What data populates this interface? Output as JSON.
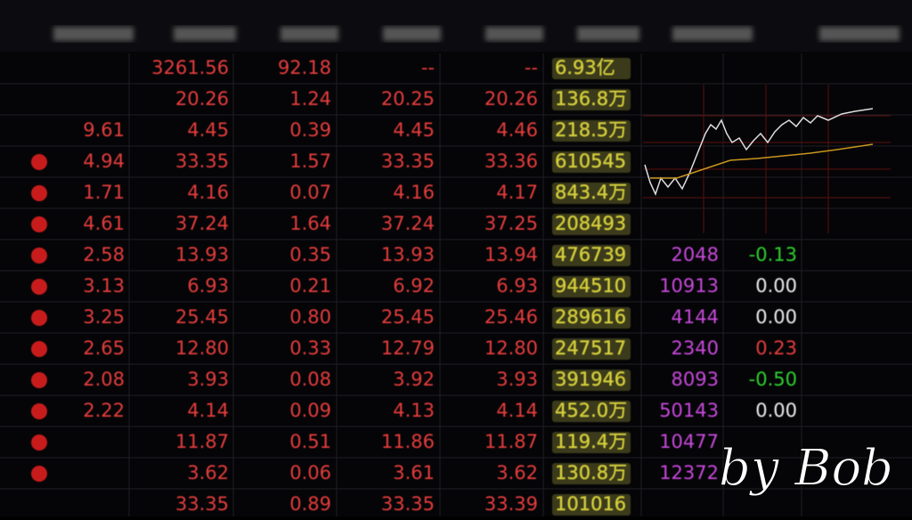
{
  "table": {
    "rows": [
      [
        null,
        "3261.56",
        "92.18",
        "--",
        "--",
        "6.93亿",
        null,
        null
      ],
      [
        null,
        "20.26",
        "1.24",
        "20.25",
        "20.26",
        "136.8万",
        null,
        null
      ],
      [
        "9.61",
        "4.45",
        "0.39",
        "4.45",
        "4.46",
        "218.5万",
        null,
        null
      ],
      [
        "4.94",
        "33.35",
        "1.57",
        "33.35",
        "33.36",
        "610545",
        null,
        null
      ],
      [
        "1.71",
        "4.16",
        "0.07",
        "4.16",
        "4.17",
        "843.4万",
        null,
        null
      ],
      [
        "4.61",
        "37.24",
        "1.64",
        "37.24",
        "37.25",
        "208493",
        null,
        null
      ],
      [
        "2.58",
        "13.93",
        "0.35",
        "13.93",
        "13.94",
        "476739",
        "2048",
        "-0.13"
      ],
      [
        "3.13",
        "6.93",
        "0.21",
        "6.92",
        "6.93",
        "944510",
        "10913",
        "0.00"
      ],
      [
        "3.25",
        "25.45",
        "0.80",
        "25.45",
        "25.46",
        "289616",
        "4144",
        "0.00"
      ],
      [
        "2.65",
        "12.80",
        "0.33",
        "12.79",
        "12.80",
        "247517",
        "2340",
        "0.23"
      ],
      [
        "2.08",
        "3.93",
        "0.08",
        "3.92",
        "3.93",
        "391946",
        "8093",
        "-0.50"
      ],
      [
        "2.22",
        "4.14",
        "0.09",
        "4.13",
        "4.14",
        "452.0万",
        "50143",
        "0.00"
      ],
      [
        null,
        "11.87",
        "0.51",
        "11.86",
        "11.87",
        "119.4万",
        "10477",
        null
      ],
      [
        null,
        "3.62",
        "0.06",
        "3.61",
        "3.62",
        "130.8万",
        "12372",
        null
      ],
      [
        null,
        "33.35",
        "0.89",
        "33.35",
        "33.39",
        "101016",
        null,
        null
      ]
    ]
  },
  "watermark": "by Bob"
}
